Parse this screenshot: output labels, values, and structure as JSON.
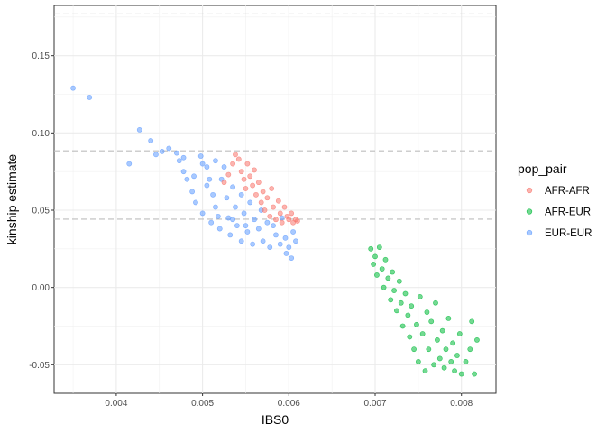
{
  "chart_data": {
    "type": "scatter",
    "xlabel": "IBS0",
    "ylabel": "kinship estimate",
    "xlim": [
      0.00328,
      0.0084
    ],
    "ylim": [
      -0.0685,
      0.1825
    ],
    "xticks": [
      0.004,
      0.005,
      0.006,
      0.007,
      0.008
    ],
    "xtick_labels": [
      "0.004",
      "0.005",
      "0.006",
      "0.007",
      "0.008"
    ],
    "yticks": [
      -0.05,
      0.0,
      0.05,
      0.1,
      0.15
    ],
    "ytick_labels": [
      "-0.05",
      "0.00",
      "0.05",
      "0.10",
      "0.15"
    ],
    "reference_lines_y": [
      0.177,
      0.0884,
      0.0442
    ],
    "grid": true,
    "legend": {
      "title": "pop_pair",
      "placement": "right",
      "entries": [
        {
          "label": "AFR-AFR",
          "color": "#F8766D"
        },
        {
          "label": "AFR-EUR",
          "color": "#00BA38"
        },
        {
          "label": "EUR-EUR",
          "color": "#619CFF"
        }
      ]
    },
    "series": [
      {
        "name": "EUR-EUR",
        "color": "#619CFF",
        "points": [
          [
            0.0035,
            0.129
          ],
          [
            0.00369,
            0.123
          ],
          [
            0.00415,
            0.08
          ],
          [
            0.00427,
            0.102
          ],
          [
            0.0044,
            0.095
          ],
          [
            0.00446,
            0.086
          ],
          [
            0.00453,
            0.088
          ],
          [
            0.00461,
            0.09
          ],
          [
            0.0047,
            0.087
          ],
          [
            0.00473,
            0.082
          ],
          [
            0.00478,
            0.075
          ],
          [
            0.00478,
            0.084
          ],
          [
            0.00482,
            0.07
          ],
          [
            0.00488,
            0.062
          ],
          [
            0.00492,
            0.055
          ],
          [
            0.00498,
            0.085
          ],
          [
            0.005,
            0.08
          ],
          [
            0.005,
            0.048
          ],
          [
            0.00505,
            0.078
          ],
          [
            0.00508,
            0.07
          ],
          [
            0.0051,
            0.042
          ],
          [
            0.00512,
            0.06
          ],
          [
            0.00515,
            0.082
          ],
          [
            0.00515,
            0.052
          ],
          [
            0.0052,
            0.038
          ],
          [
            0.00522,
            0.07
          ],
          [
            0.00525,
            0.078
          ],
          [
            0.00528,
            0.058
          ],
          [
            0.0053,
            0.045
          ],
          [
            0.00532,
            0.034
          ],
          [
            0.00535,
            0.065
          ],
          [
            0.00538,
            0.052
          ],
          [
            0.0054,
            0.04
          ],
          [
            0.00545,
            0.06
          ],
          [
            0.00545,
            0.03
          ],
          [
            0.00548,
            0.048
          ],
          [
            0.00552,
            0.036
          ],
          [
            0.00555,
            0.055
          ],
          [
            0.00558,
            0.028
          ],
          [
            0.0056,
            0.044
          ],
          [
            0.00565,
            0.038
          ],
          [
            0.00568,
            0.05
          ],
          [
            0.0057,
            0.03
          ],
          [
            0.00575,
            0.042
          ],
          [
            0.00578,
            0.026
          ],
          [
            0.00582,
            0.04
          ],
          [
            0.00585,
            0.034
          ],
          [
            0.0059,
            0.028
          ],
          [
            0.00592,
            0.045
          ],
          [
            0.00596,
            0.032
          ],
          [
            0.006,
            0.026
          ],
          [
            0.00605,
            0.036
          ],
          [
            0.00597,
            0.022
          ],
          [
            0.00603,
            0.019
          ],
          [
            0.00608,
            0.03
          ],
          [
            0.0049,
            0.072
          ],
          [
            0.00505,
            0.066
          ],
          [
            0.00518,
            0.046
          ],
          [
            0.00535,
            0.044
          ],
          [
            0.0055,
            0.04
          ]
        ]
      },
      {
        "name": "AFR-AFR",
        "color": "#F8766D",
        "points": [
          [
            0.00525,
            0.068
          ],
          [
            0.0053,
            0.073
          ],
          [
            0.00535,
            0.08
          ],
          [
            0.00538,
            0.086
          ],
          [
            0.00542,
            0.083
          ],
          [
            0.00545,
            0.075
          ],
          [
            0.00548,
            0.07
          ],
          [
            0.0055,
            0.064
          ],
          [
            0.00552,
            0.08
          ],
          [
            0.00555,
            0.072
          ],
          [
            0.00558,
            0.066
          ],
          [
            0.0056,
            0.076
          ],
          [
            0.00562,
            0.06
          ],
          [
            0.00565,
            0.068
          ],
          [
            0.00568,
            0.055
          ],
          [
            0.0057,
            0.062
          ],
          [
            0.00572,
            0.05
          ],
          [
            0.00575,
            0.058
          ],
          [
            0.00578,
            0.046
          ],
          [
            0.0058,
            0.064
          ],
          [
            0.00582,
            0.052
          ],
          [
            0.00585,
            0.044
          ],
          [
            0.00588,
            0.056
          ],
          [
            0.0059,
            0.048
          ],
          [
            0.00592,
            0.042
          ],
          [
            0.00595,
            0.052
          ],
          [
            0.00598,
            0.046
          ],
          [
            0.006,
            0.044
          ],
          [
            0.00603,
            0.048
          ],
          [
            0.00605,
            0.042
          ],
          [
            0.00608,
            0.044
          ],
          [
            0.0061,
            0.043
          ]
        ]
      },
      {
        "name": "AFR-EUR",
        "color": "#00BA38",
        "points": [
          [
            0.00695,
            0.025
          ],
          [
            0.00698,
            0.015
          ],
          [
            0.007,
            0.02
          ],
          [
            0.00702,
            0.008
          ],
          [
            0.00705,
            0.026
          ],
          [
            0.00708,
            0.012
          ],
          [
            0.0071,
            0.0
          ],
          [
            0.00712,
            0.018
          ],
          [
            0.00715,
            0.006
          ],
          [
            0.00718,
            -0.008
          ],
          [
            0.0072,
            0.01
          ],
          [
            0.00722,
            -0.002
          ],
          [
            0.00725,
            -0.015
          ],
          [
            0.00728,
            0.004
          ],
          [
            0.0073,
            -0.01
          ],
          [
            0.00732,
            -0.025
          ],
          [
            0.00735,
            -0.004
          ],
          [
            0.00738,
            -0.018
          ],
          [
            0.0074,
            -0.032
          ],
          [
            0.00742,
            -0.012
          ],
          [
            0.00745,
            -0.04
          ],
          [
            0.00748,
            -0.024
          ],
          [
            0.0075,
            -0.048
          ],
          [
            0.00752,
            -0.006
          ],
          [
            0.00755,
            -0.03
          ],
          [
            0.00758,
            -0.054
          ],
          [
            0.0076,
            -0.016
          ],
          [
            0.00762,
            -0.04
          ],
          [
            0.00765,
            -0.022
          ],
          [
            0.00768,
            -0.05
          ],
          [
            0.0077,
            -0.01
          ],
          [
            0.00772,
            -0.034
          ],
          [
            0.00775,
            -0.046
          ],
          [
            0.00778,
            -0.028
          ],
          [
            0.0078,
            -0.052
          ],
          [
            0.00782,
            -0.04
          ],
          [
            0.00785,
            -0.02
          ],
          [
            0.00788,
            -0.048
          ],
          [
            0.0079,
            -0.036
          ],
          [
            0.00792,
            -0.054
          ],
          [
            0.00795,
            -0.044
          ],
          [
            0.00798,
            -0.03
          ],
          [
            0.008,
            -0.056
          ],
          [
            0.00805,
            -0.048
          ],
          [
            0.0081,
            -0.04
          ],
          [
            0.00815,
            -0.056
          ],
          [
            0.00818,
            -0.034
          ],
          [
            0.00812,
            -0.022
          ]
        ]
      }
    ]
  }
}
